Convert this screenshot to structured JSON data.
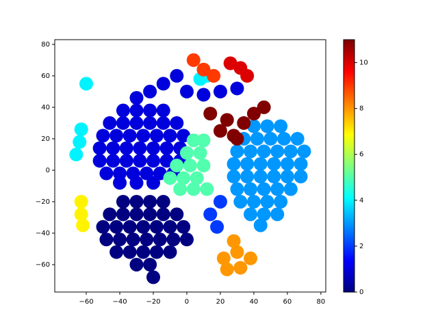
{
  "chart_data": {
    "type": "scatter",
    "colormap": "jet",
    "xlim": [
      -78.8,
      82.9
    ],
    "ylim": [
      -77.4,
      83
    ],
    "xticks": [
      {
        "value": -60,
        "label": "−60"
      },
      {
        "value": -40,
        "label": "−40"
      },
      {
        "value": -20,
        "label": "−20"
      },
      0,
      20,
      40,
      60,
      80
    ],
    "yticks": [
      {
        "value": -60,
        "label": "−60"
      },
      {
        "value": -40,
        "label": "−40"
      },
      {
        "value": -20,
        "label": "−20"
      },
      0,
      20,
      40,
      60,
      80
    ],
    "clim": [
      0,
      11
    ],
    "cticks": [
      0,
      2,
      4,
      6,
      8,
      10
    ],
    "series": [
      {
        "c": 1,
        "x": [
          -38,
          -30,
          -22,
          -14,
          -46,
          -38,
          -30,
          -22,
          -14,
          -6,
          -50,
          -42,
          -34,
          -26,
          -18,
          -10,
          -2,
          -52,
          -44,
          -36,
          -28,
          -20,
          -12,
          -4,
          -52,
          -44,
          -36,
          -28,
          -20,
          -12,
          -4,
          -48,
          -40,
          -32,
          -24,
          -16,
          -8,
          -40,
          -30,
          -20,
          -30,
          -22,
          -14,
          -6,
          0,
          10,
          20,
          30
        ],
        "values": [
          38,
          38,
          38,
          38,
          30,
          30,
          30,
          30,
          30,
          30,
          22,
          22,
          22,
          22,
          22,
          22,
          22,
          14,
          14,
          14,
          14,
          14,
          14,
          14,
          6,
          6,
          6,
          6,
          6,
          6,
          6,
          -2,
          -2,
          -2,
          -2,
          -2,
          -2,
          -8,
          -8,
          -8,
          46,
          50,
          55,
          60,
          50,
          48,
          50,
          52
        ]
      },
      {
        "c": 0,
        "x": [
          -38,
          -30,
          -22,
          -14,
          -46,
          -38,
          -30,
          -22,
          -14,
          -6,
          -50,
          -42,
          -34,
          -26,
          -18,
          -10,
          -2,
          -48,
          -40,
          -32,
          -24,
          -16,
          -8,
          0,
          -42,
          -34,
          -26,
          -18,
          -10,
          -30,
          -22,
          -20
        ],
        "values": [
          -20,
          -20,
          -20,
          -20,
          -28,
          -28,
          -28,
          -28,
          -28,
          -28,
          -36,
          -36,
          -36,
          -36,
          -36,
          -36,
          -36,
          -44,
          -44,
          -44,
          -44,
          -44,
          -44,
          -44,
          -52,
          -52,
          -52,
          -52,
          -52,
          -60,
          -60,
          -68
        ]
      },
      {
        "c": 3,
        "x": [
          40,
          48,
          56,
          34,
          42,
          50,
          58,
          66,
          30,
          38,
          46,
          54,
          62,
          70,
          28,
          36,
          44,
          52,
          60,
          68,
          28,
          36,
          44,
          52,
          60,
          68,
          30,
          38,
          46,
          54,
          62,
          32,
          40,
          48,
          56,
          38,
          46,
          54,
          44
        ],
        "values": [
          28,
          28,
          28,
          20,
          20,
          20,
          20,
          20,
          12,
          12,
          12,
          12,
          12,
          12,
          4,
          4,
          4,
          4,
          4,
          4,
          -4,
          -4,
          -4,
          -4,
          -4,
          -4,
          -12,
          -12,
          -12,
          -12,
          -12,
          -20,
          -20,
          -20,
          -20,
          -28,
          -28,
          -28,
          -35
        ]
      },
      {
        "c": 5,
        "x": [
          -10,
          -2,
          6,
          -6,
          2,
          10,
          0,
          8,
          4,
          10,
          -4,
          4,
          12
        ],
        "values": [
          -5,
          -5,
          -5,
          3,
          3,
          3,
          11,
          11,
          19,
          19,
          -12,
          -12,
          -12
        ]
      },
      {
        "c": 2,
        "x": [
          14,
          18,
          20
        ],
        "values": [
          -28,
          -36,
          -20
        ]
      },
      {
        "c": 8,
        "x": [
          22,
          30,
          38,
          24,
          32,
          28
        ],
        "values": [
          -56,
          -52,
          -56,
          -63,
          -62,
          -45
        ]
      },
      {
        "c": 4,
        "x": [
          -66,
          -64,
          -63,
          -60,
          8,
          12
        ],
        "values": [
          10,
          18,
          26,
          55,
          58,
          60
        ]
      },
      {
        "c": 7,
        "x": [
          -63,
          -63,
          -62
        ],
        "values": [
          -20,
          -28,
          -35
        ]
      },
      {
        "c": 11,
        "x": [
          20,
          28,
          34,
          40,
          46,
          24,
          14,
          30
        ],
        "values": [
          25,
          22,
          30,
          36,
          40,
          32,
          36,
          20
        ]
      },
      {
        "c": 10,
        "x": [
          26,
          32,
          36
        ],
        "values": [
          68,
          65,
          60
        ]
      },
      {
        "c": 9,
        "x": [
          4,
          10,
          16
        ],
        "values": [
          70,
          64,
          60
        ]
      }
    ]
  }
}
